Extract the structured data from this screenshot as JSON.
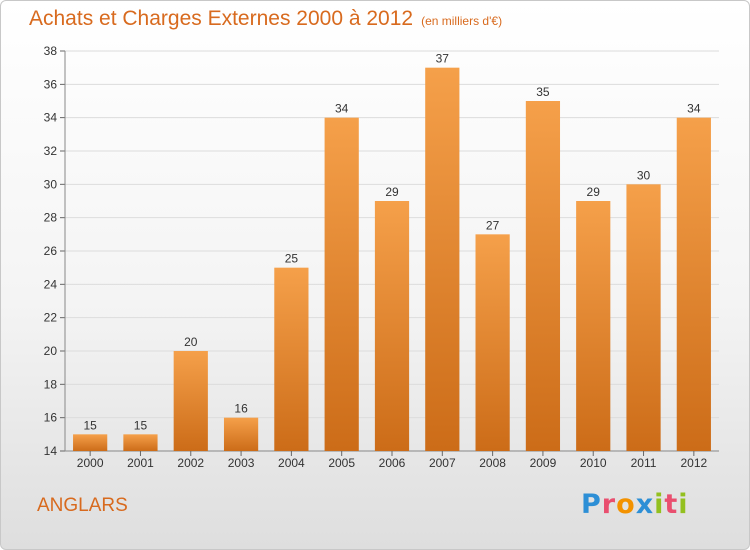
{
  "title": "Achats et Charges Externes 2000 à 2012",
  "subtitle": "(en milliers d'€)",
  "commune": "ANGLARS",
  "logo": {
    "text": "Proxiti",
    "letters": [
      {
        "char": "P",
        "color": "#2d8fd6"
      },
      {
        "char": "r",
        "color": "#e94f6f"
      },
      {
        "char": "o",
        "color": "#f39200"
      },
      {
        "char": "x",
        "color": "#2d8fd6"
      },
      {
        "char": "i",
        "color": "#93c01f"
      },
      {
        "char": "t",
        "color": "#e94f6f"
      },
      {
        "char": "i",
        "color": "#93c01f"
      }
    ]
  },
  "chart_data": {
    "type": "bar",
    "title": "Achats et Charges Externes 2000 à 2012",
    "subtitle": "(en milliers d'€)",
    "categories": [
      "2000",
      "2001",
      "2002",
      "2003",
      "2004",
      "2005",
      "2006",
      "2007",
      "2008",
      "2009",
      "2010",
      "2011",
      "2012"
    ],
    "values": [
      15,
      15,
      20,
      16,
      25,
      34,
      29,
      37,
      27,
      35,
      29,
      30,
      34
    ],
    "ylim": [
      14,
      38
    ],
    "yticks": [
      14,
      16,
      18,
      20,
      22,
      24,
      26,
      28,
      30,
      32,
      34,
      36,
      38
    ],
    "grid": true,
    "legend": "none",
    "bar_color": "#f5a04a",
    "bar_color_dark": "#cc6c18"
  }
}
